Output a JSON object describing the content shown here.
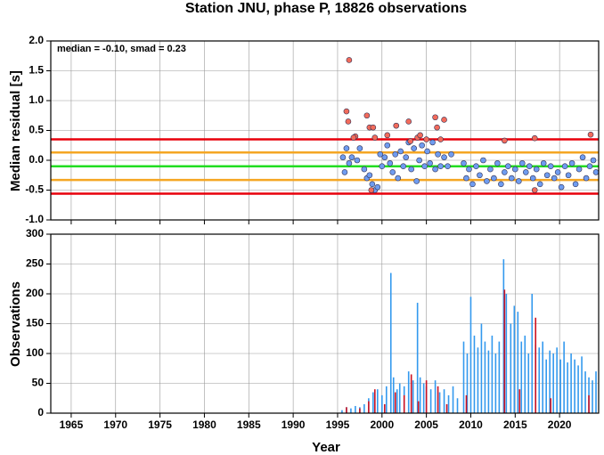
{
  "chart_data": [
    {
      "type": "scatter",
      "title": "Station JNU, phase P, 18826 observations",
      "annotation": "median = -0.10, smad = 0.23",
      "ylabel": "Median residual [s]",
      "xlim": [
        1962.7,
        2024.4
      ],
      "xticks": [
        1965,
        1970,
        1975,
        1980,
        1985,
        1990,
        1995,
        2000,
        2005,
        2010,
        2015,
        2020
      ],
      "show_xtick_labels": false,
      "ylim": [
        -1,
        2
      ],
      "yticks": [
        {
          "value": 2,
          "label": "2.0"
        },
        {
          "value": 1.5,
          "label": "1.5"
        },
        {
          "value": 1,
          "label": "1.0"
        },
        {
          "value": 0.5,
          "label": "0.5"
        },
        {
          "value": 0,
          "label": "0.0"
        },
        {
          "value": -0.5,
          "label": "-0.5"
        },
        {
          "value": -1,
          "label": "-1.0"
        }
      ],
      "grid": true,
      "hlines": [
        {
          "value": 0.35,
          "color": "#e8000b"
        },
        {
          "value": 0.13,
          "color": "#f5a623"
        },
        {
          "value": -0.1,
          "color": "#22dd22"
        },
        {
          "value": -0.33,
          "color": "#f5a623"
        },
        {
          "value": -0.56,
          "color": "#e8000b"
        }
      ],
      "series": [
        {
          "color": "#6f9cf0",
          "x": [
            1995.6,
            1995.8,
            1996.0,
            1996.3,
            1996.6,
            1997.2,
            1997.5,
            1998.0,
            1998.3,
            1998.6,
            1998.9,
            1999.2,
            1999.5,
            1999.8,
            2000.0,
            2000.3,
            2000.6,
            2000.9,
            2001.2,
            2001.5,
            2001.8,
            2002.1,
            2002.4,
            2002.7,
            2003.0,
            2003.3,
            2003.6,
            2003.9,
            2004.2,
            2004.5,
            2004.8,
            2005.1,
            2005.4,
            2005.7,
            2006.0,
            2006.3,
            2006.6,
            2007.0,
            2007.4,
            2007.8,
            2009.2,
            2009.5,
            2009.8,
            2010.2,
            2010.6,
            2011.0,
            2011.4,
            2011.8,
            2012.2,
            2012.6,
            2013.0,
            2013.4,
            2013.8,
            2014.2,
            2014.6,
            2015.0,
            2015.4,
            2015.8,
            2016.2,
            2016.6,
            2017.0,
            2017.4,
            2017.8,
            2018.2,
            2018.6,
            2019.0,
            2019.4,
            2019.8,
            2020.2,
            2020.6,
            2021.0,
            2021.4,
            2021.8,
            2022.2,
            2022.6,
            2023.0,
            2023.4,
            2023.8,
            2024.1
          ],
          "values": [
            0.05,
            -0.2,
            0.2,
            -0.05,
            0.05,
            0.0,
            0.2,
            -0.15,
            -0.3,
            -0.25,
            -0.4,
            -0.5,
            -0.45,
            0.1,
            -0.1,
            0.05,
            0.25,
            -0.05,
            -0.2,
            0.1,
            -0.3,
            0.15,
            -0.1,
            0.05,
            0.3,
            -0.15,
            0.2,
            -0.35,
            0.0,
            0.25,
            -0.1,
            0.15,
            -0.05,
            0.3,
            -0.15,
            0.1,
            -0.1,
            0.05,
            -0.1,
            0.1,
            -0.05,
            -0.3,
            -0.15,
            -0.4,
            -0.1,
            -0.25,
            0.0,
            -0.35,
            -0.15,
            -0.3,
            -0.05,
            -0.4,
            -0.2,
            -0.1,
            -0.3,
            -0.15,
            -0.35,
            -0.05,
            -0.2,
            -0.1,
            -0.3,
            -0.15,
            -0.4,
            -0.05,
            -0.25,
            -0.1,
            -0.3,
            -0.2,
            -0.45,
            -0.1,
            -0.25,
            -0.05,
            -0.4,
            -0.15,
            0.05,
            -0.3,
            -0.1,
            0.0,
            -0.2
          ]
        },
        {
          "color": "#f26b5b",
          "x": [
            1996.0,
            1996.3,
            1996.2,
            1997.0,
            1996.8,
            1998.3,
            1998.6,
            1999.0,
            1999.2,
            1998.8,
            2000.6,
            2001.6,
            2003.0,
            2003.2,
            2004.0,
            2004.3,
            2005.0,
            2006.0,
            2006.2,
            2006.6,
            2007.0,
            2013.8,
            2017.2,
            2017.2,
            2023.5
          ],
          "values": [
            0.82,
            1.68,
            0.65,
            0.4,
            0.38,
            0.75,
            0.55,
            0.55,
            0.38,
            -0.5,
            0.42,
            0.58,
            0.65,
            0.32,
            0.38,
            0.42,
            0.35,
            0.72,
            0.55,
            0.35,
            0.68,
            0.33,
            0.37,
            -0.5,
            0.43
          ]
        }
      ]
    },
    {
      "type": "bar",
      "xlabel": "Year",
      "ylabel": "Observations",
      "xlim": [
        1962.7,
        2024.4
      ],
      "xticks": [
        1965,
        1970,
        1975,
        1980,
        1985,
        1990,
        1995,
        2000,
        2005,
        2010,
        2015,
        2020
      ],
      "show_xtick_labels": true,
      "ylim": [
        0,
        300
      ],
      "yticks": [
        0,
        50,
        100,
        150,
        200,
        250,
        300
      ],
      "grid": true,
      "series": [
        {
          "color": "#3399ee",
          "x": [
            1995.5,
            1996,
            1996.5,
            1997,
            1997.5,
            1998,
            1998.5,
            1999,
            1999.5,
            2000,
            2000.5,
            2001,
            2001.3,
            2001.7,
            2002,
            2002.5,
            2003,
            2003.5,
            2004,
            2004.3,
            2004.7,
            2005,
            2005.5,
            2006,
            2006.5,
            2007,
            2007.5,
            2008,
            2008.5,
            2009.2,
            2009.6,
            2010,
            2010.4,
            2010.8,
            2011.2,
            2011.6,
            2012,
            2012.4,
            2012.8,
            2013.2,
            2013.7,
            2014,
            2014.5,
            2014.9,
            2015.3,
            2015.7,
            2016.1,
            2016.5,
            2016.9,
            2017.3,
            2017.7,
            2018.1,
            2018.5,
            2018.9,
            2019.3,
            2019.7,
            2020.1,
            2020.5,
            2020.9,
            2021.3,
            2021.7,
            2022.1,
            2022.5,
            2022.9,
            2023.3,
            2023.7,
            2024.1
          ],
          "values": [
            5,
            10,
            8,
            12,
            10,
            15,
            25,
            35,
            40,
            30,
            45,
            235,
            60,
            40,
            50,
            45,
            70,
            55,
            185,
            60,
            50,
            45,
            40,
            55,
            35,
            40,
            30,
            45,
            25,
            120,
            100,
            195,
            130,
            110,
            150,
            120,
            105,
            130,
            100,
            120,
            258,
            200,
            150,
            180,
            170,
            120,
            130,
            100,
            200,
            115,
            110,
            120,
            90,
            105,
            100,
            110,
            90,
            120,
            85,
            100,
            90,
            80,
            95,
            70,
            60,
            55,
            70
          ]
        },
        {
          "color": "#cc1122",
          "x": [
            1996,
            1997.5,
            1998.5,
            1999.2,
            2000.3,
            2001.5,
            2002.5,
            2003.3,
            2004.1,
            2005,
            2006.3,
            2007.3,
            2009.5,
            2013.8,
            2015.5,
            2017.3,
            2019,
            2023.3
          ],
          "values": [
            10,
            8,
            20,
            40,
            15,
            35,
            30,
            65,
            20,
            55,
            45,
            15,
            30,
            207,
            40,
            160,
            25,
            30
          ]
        }
      ]
    }
  ]
}
